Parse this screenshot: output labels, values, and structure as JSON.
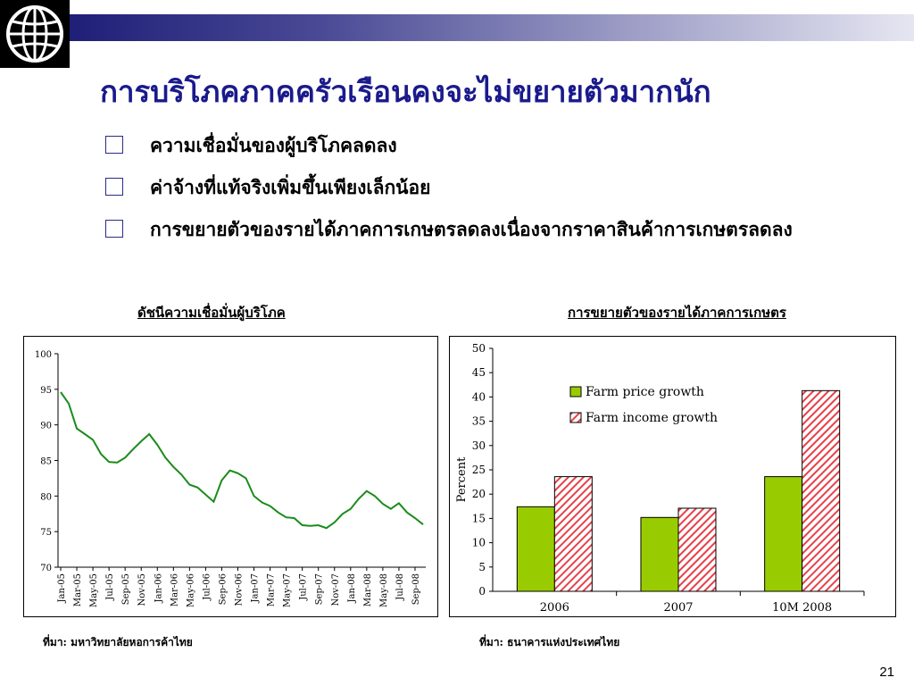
{
  "slide": {
    "title": "การบริโภคภาคครัวเรือนคงจะไม่ขยายตัวมากนัก",
    "bullets": [
      "ความเชื่อมั่นของผู้บริโภคลดลง",
      "ค่าจ้างที่แท้จริงเพิ่มขึ้นเพียงเล็กน้อย",
      "การขยายตัวของรายได้ภาคการเกษตรลดลงเนื่องจากราคาสินค้าการเกษตรลดลง"
    ],
    "page_number": "21",
    "colors": {
      "title": "#1a1a8c",
      "line": "#1a8c1a",
      "farm_price": "#99cc00",
      "farm_income": "#e8404a"
    }
  },
  "left_chart": {
    "subtitle": "ดัชนีความเชื่อมั่นผู้บริโภค",
    "source": "ที่มา: มหาวิทยาลัยหอการค้าไทย"
  },
  "right_chart": {
    "subtitle": "การขยายตัวของรายได้ภาคการเกษตร",
    "source": "ที่มา: ธนาคารแห่งประเทศไทย"
  },
  "chart_data": [
    {
      "type": "line",
      "title": "",
      "xlabel": "",
      "ylabel": "",
      "ylim": [
        70,
        100
      ],
      "yticks": [
        70,
        75,
        80,
        85,
        90,
        95,
        100
      ],
      "xtick_labels": [
        "Jan-05",
        "Mar-05",
        "May-05",
        "Jul-05",
        "Sep-05",
        "Nov-05",
        "Jan-06",
        "Mar-06",
        "May-06",
        "Jul-06",
        "Sep-06",
        "Nov-06",
        "Jan-07",
        "Mar-07",
        "May-07",
        "Jul-07",
        "Sep-07",
        "Nov-07",
        "Jan-08",
        "Mar-08",
        "May-08",
        "Jul-08",
        "Sep-08"
      ],
      "grid": false,
      "series": [
        {
          "values": [
            94.6,
            93.0,
            89.5,
            88.7,
            87.9,
            85.9,
            84.8,
            84.7,
            85.4,
            86.6,
            87.7,
            88.7,
            87.2,
            85.4,
            84.1,
            83.0,
            81.6,
            81.2,
            80.2,
            79.2,
            82.2,
            83.6,
            83.2,
            82.5,
            80.0,
            79.1,
            78.6,
            77.7,
            77.0,
            76.9,
            75.9,
            75.8,
            75.9,
            75.5,
            76.3,
            77.5,
            78.2,
            79.6,
            80.7,
            80.0,
            78.9,
            78.2,
            79.0,
            77.7,
            76.9,
            76.0
          ]
        }
      ]
    },
    {
      "type": "bar",
      "title": "",
      "xlabel": "",
      "ylabel": "Percent",
      "ylim": [
        0,
        50
      ],
      "yticks": [
        0,
        5,
        10,
        15,
        20,
        25,
        30,
        35,
        40,
        45,
        50
      ],
      "categories": [
        "2006",
        "2007",
        "10M 2008"
      ],
      "legend": "top-left inside",
      "grid": false,
      "series": [
        {
          "name": "Farm price growth",
          "values": [
            17.4,
            15.2,
            23.6
          ]
        },
        {
          "name": "Farm income growth",
          "values": [
            23.6,
            17.1,
            41.3
          ]
        }
      ]
    }
  ]
}
